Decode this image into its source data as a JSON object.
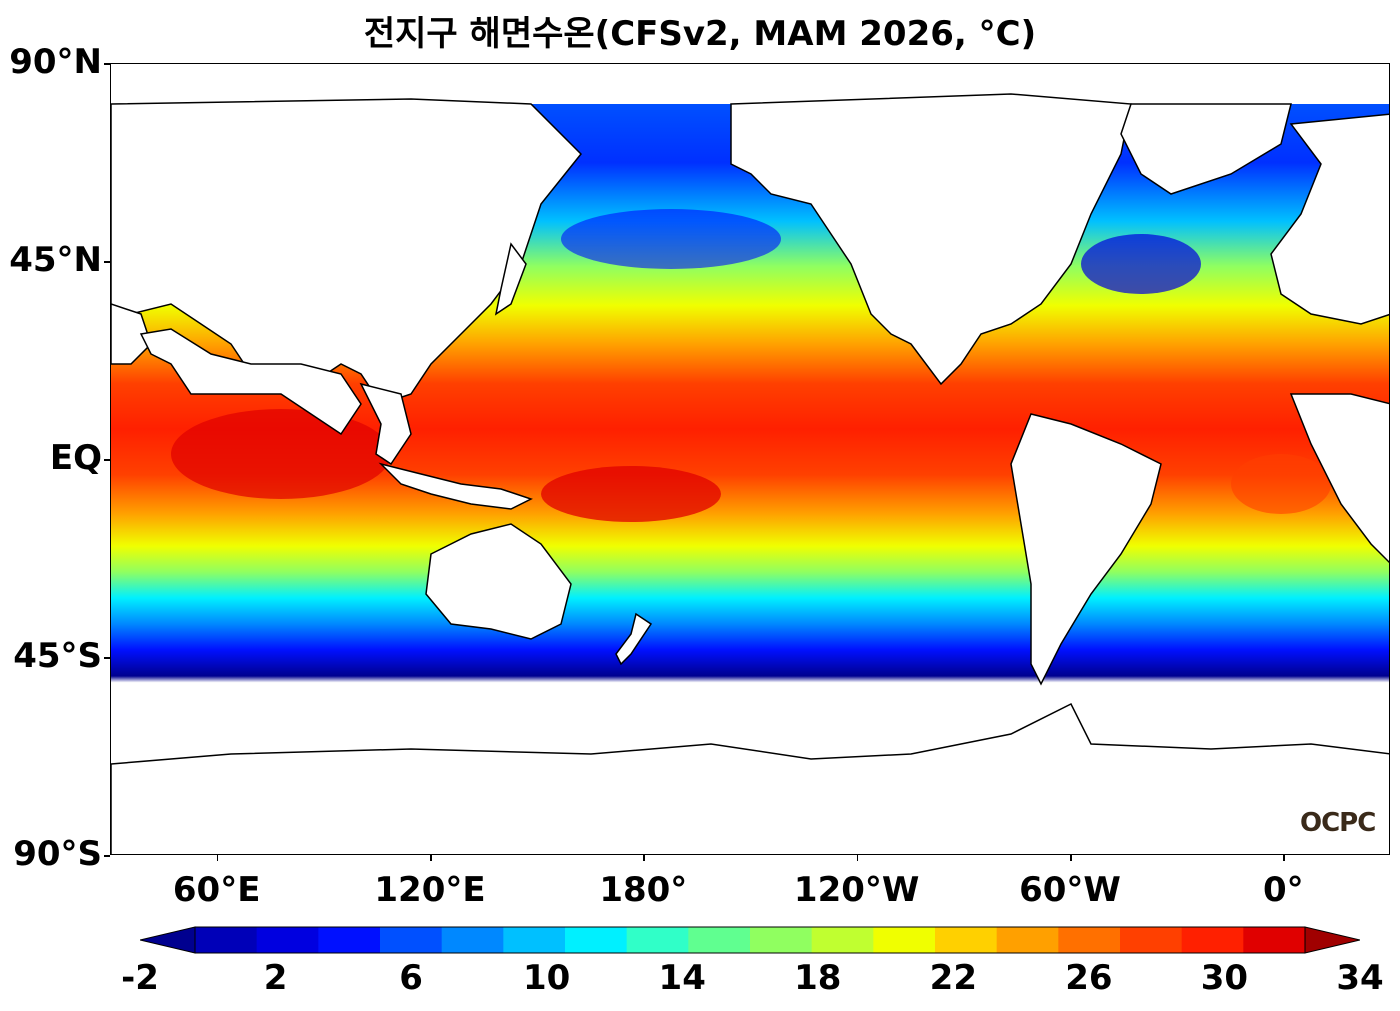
{
  "title": "전지구 해면수온(CFSv2, MAM 2026, °C)",
  "logo_text": "OCPC",
  "map": {
    "projection": "PlateCarree",
    "central_longitude": 150,
    "lat_range": [
      -90,
      90
    ],
    "lon_range": [
      30,
      390
    ],
    "variable": "sea surface temperature",
    "units": "°C",
    "lat_ticks": [
      {
        "value": 90,
        "label": "90°N"
      },
      {
        "value": 45,
        "label": "45°N"
      },
      {
        "value": 0,
        "label": "EQ"
      },
      {
        "value": -45,
        "label": "45°S"
      },
      {
        "value": -90,
        "label": "90°S"
      }
    ],
    "lon_ticks": [
      {
        "value": 60,
        "label": "60°E"
      },
      {
        "value": 120,
        "label": "120°E"
      },
      {
        "value": 180,
        "label": "180°"
      },
      {
        "value": 240,
        "label": "120°W"
      },
      {
        "value": 300,
        "label": "60°W"
      },
      {
        "value": 360,
        "label": "0°"
      }
    ]
  },
  "colorbar": {
    "min": -2,
    "max": 34,
    "step": 2,
    "extend": "both",
    "labels": [
      "-2",
      "2",
      "6",
      "10",
      "14",
      "18",
      "22",
      "26",
      "30",
      "34"
    ],
    "colors": [
      "#00008f",
      "#0000b8",
      "#0000e0",
      "#0010ff",
      "#0050ff",
      "#0088ff",
      "#00c0ff",
      "#00f0ff",
      "#30ffc8",
      "#60ff90",
      "#90ff60",
      "#c0ff30",
      "#f0ff00",
      "#ffd000",
      "#ffa000",
      "#ff7000",
      "#ff4000",
      "#ff2000",
      "#e00000",
      "#a00000"
    ]
  }
}
